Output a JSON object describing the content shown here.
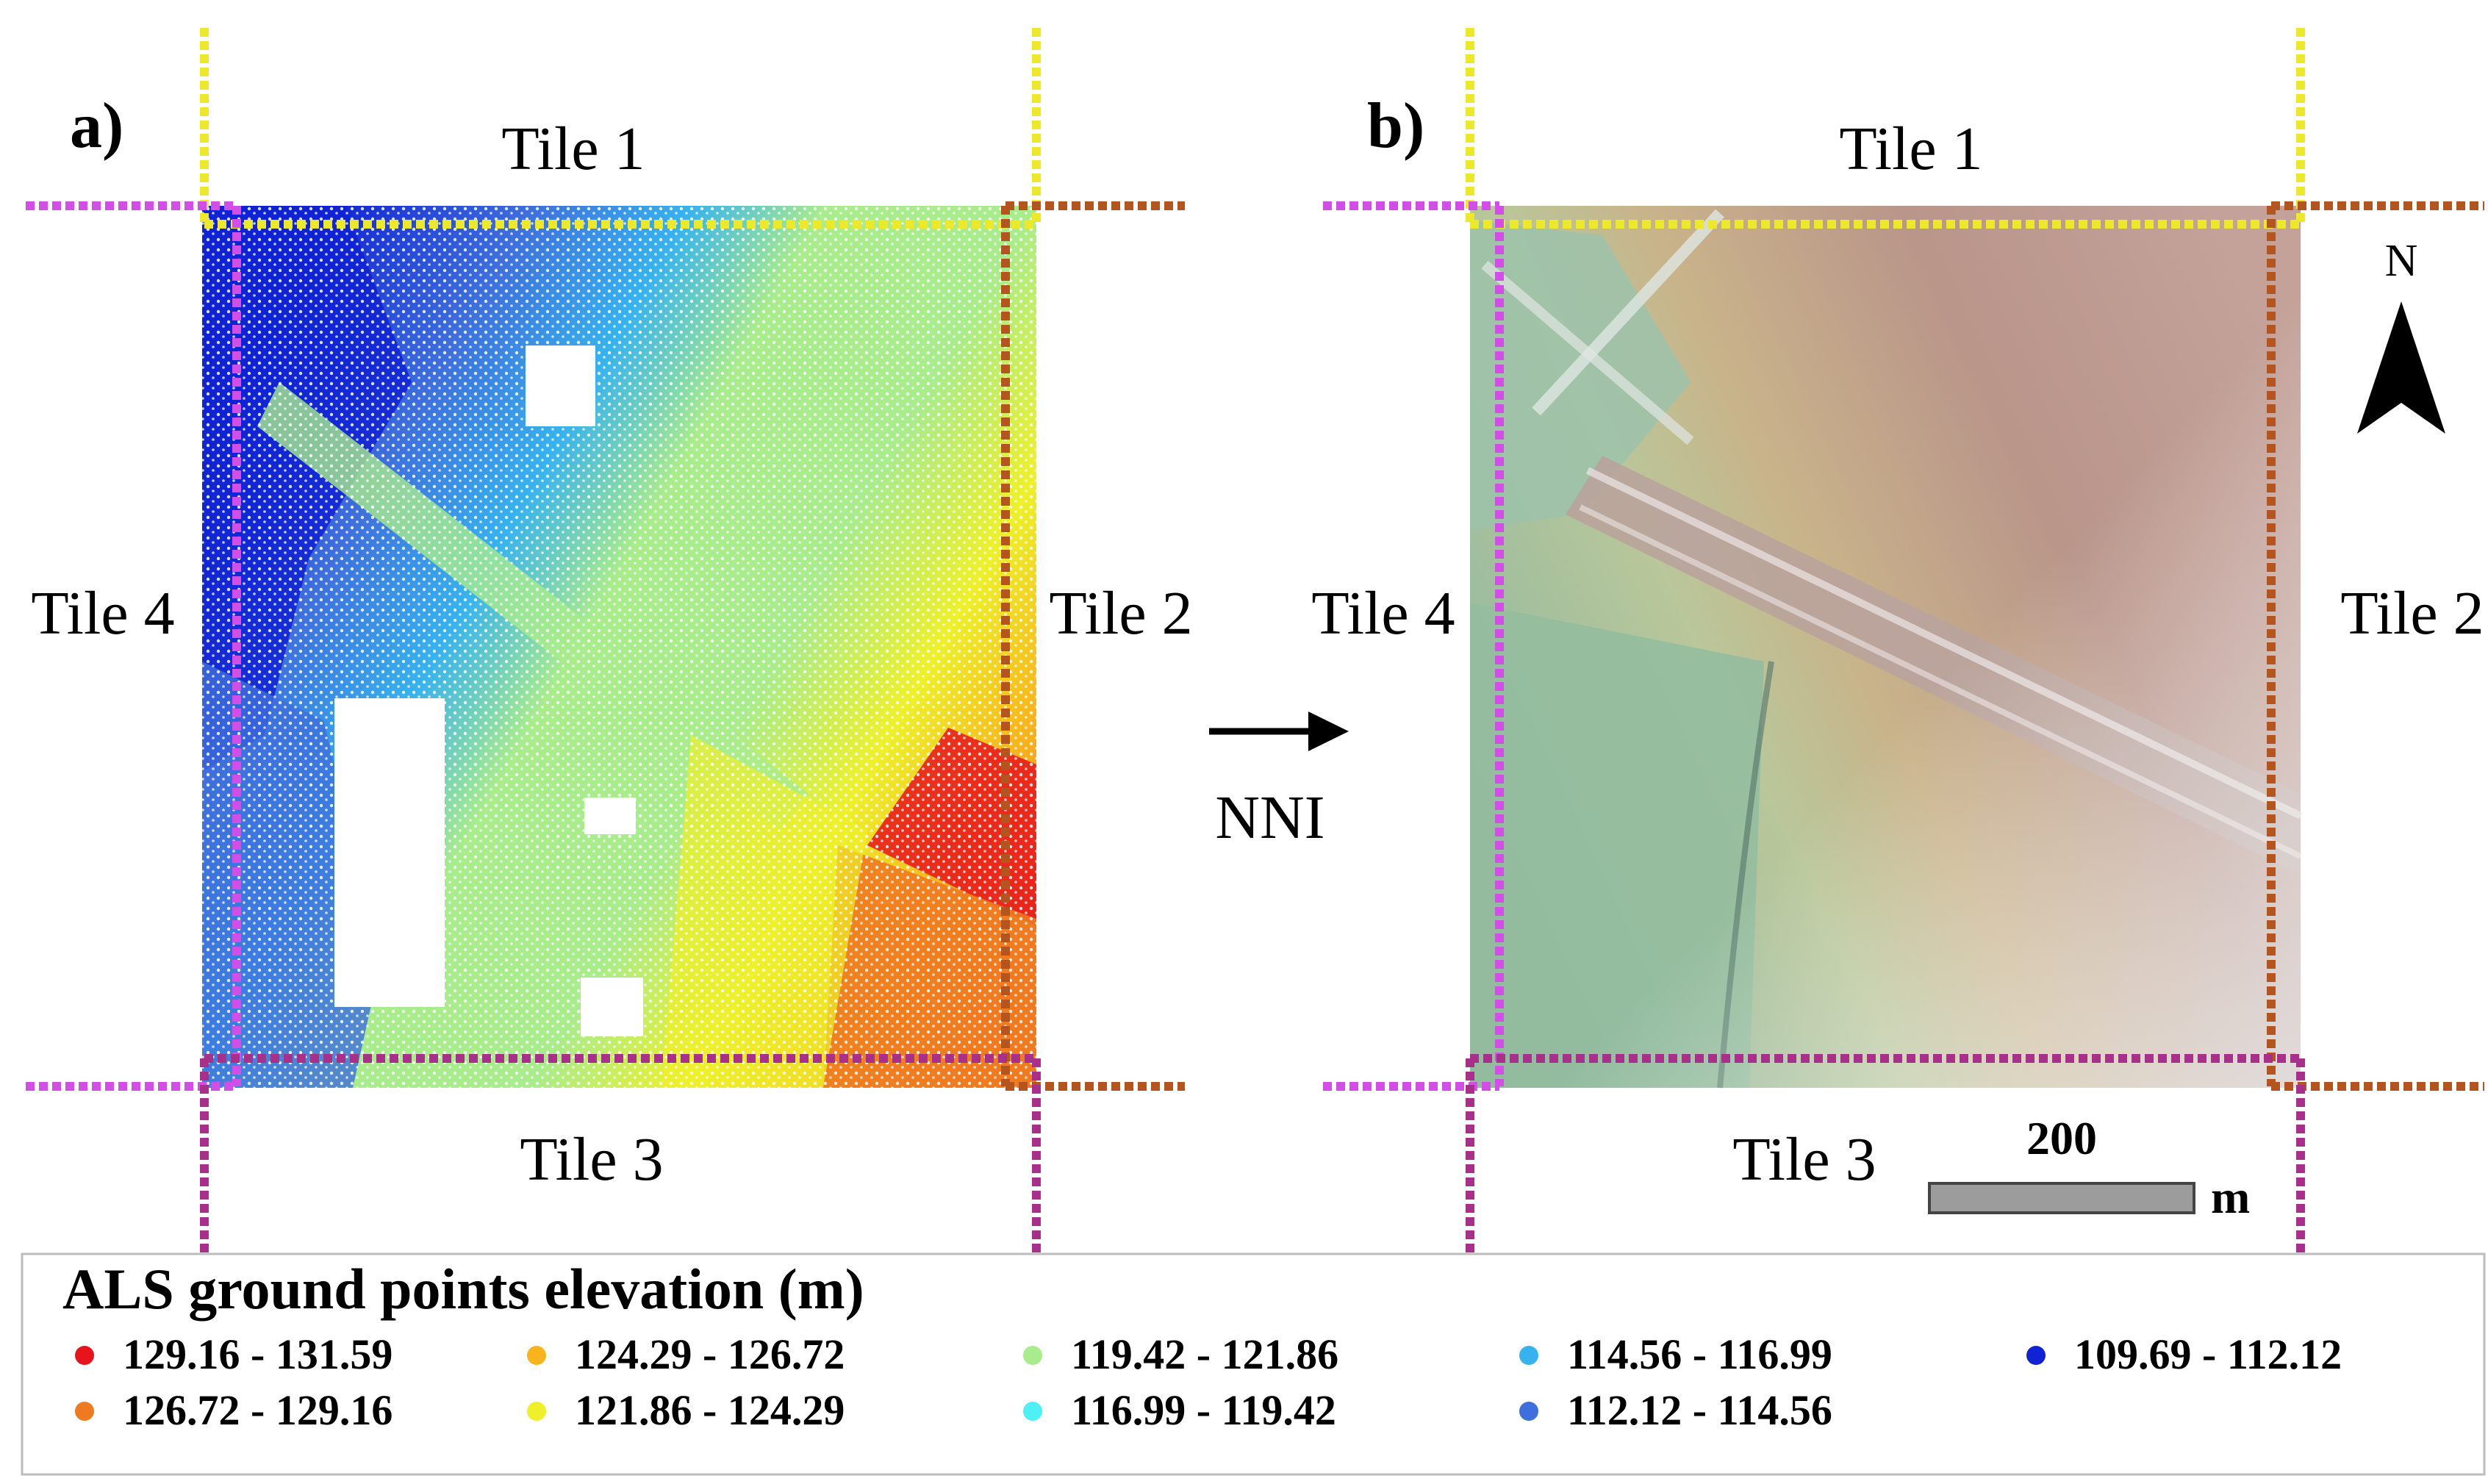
{
  "panels": {
    "a": {
      "label": "a)",
      "tiles": {
        "north": "Tile 1",
        "east": "Tile 2",
        "south": "Tile 3",
        "west": "Tile 4"
      }
    },
    "b": {
      "label": "b)",
      "tiles": {
        "north": "Tile 1",
        "east": "Tile 2",
        "south": "Tile 3",
        "west": "Tile 4"
      }
    }
  },
  "arrow": {
    "label": "NNI"
  },
  "north_arrow": {
    "label": "N"
  },
  "scale_bar": {
    "value": "200",
    "unit": "m"
  },
  "legend": {
    "title": "ALS ground points elevation (m)",
    "items": [
      {
        "range": "129.16 - 131.59",
        "color": "#e8141b"
      },
      {
        "range": "126.72 - 129.16",
        "color": "#f07a20"
      },
      {
        "range": "124.29 - 126.72",
        "color": "#f7b41c"
      },
      {
        "range": "121.86 - 124.29",
        "color": "#eef02a"
      },
      {
        "range": "119.42 - 121.86",
        "color": "#a8ec8c"
      },
      {
        "range": "116.99 - 119.42",
        "color": "#4ff0f4"
      },
      {
        "range": "114.56 - 116.99",
        "color": "#37b2ee"
      },
      {
        "range": "112.12 - 114.56",
        "color": "#3e6fdc"
      },
      {
        "range": "109.69 - 112.12",
        "color": "#0f22d4"
      }
    ]
  },
  "colors": {
    "tile1_border": "#ece82a",
    "tile2_border": "#b4541e",
    "tile3_border": "#a8308a",
    "tile4_border": "#d24ee6"
  }
}
